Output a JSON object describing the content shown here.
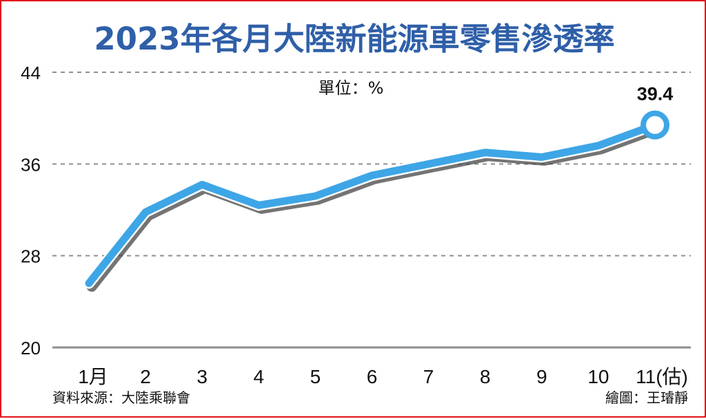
{
  "page": {
    "title": "2023年各月大陸新能源車零售滲透率",
    "unit_text": "單位：%",
    "source_text": "資料來源：大陸乘聯會",
    "credit_text": "繪圖：王璿靜"
  },
  "chart_data": {
    "type": "line",
    "title": "2023年各月大陸新能源車零售滲透率",
    "xlabel": "",
    "ylabel": "",
    "unit": "%",
    "categories": [
      "1月",
      "2",
      "3",
      "4",
      "5",
      "6",
      "7",
      "8",
      "9",
      "10",
      "11(估)"
    ],
    "series": [
      {
        "values": [
          25.6,
          31.8,
          34.2,
          32.4,
          33.2,
          35.0,
          36.0,
          37.0,
          36.6,
          37.6,
          39.4
        ],
        "color": "#3ea6e6"
      }
    ],
    "ylim": [
      20,
      44
    ],
    "yticks": [
      "20",
      "28",
      "36",
      "44"
    ],
    "grid": true,
    "data_labels": [
      {
        "category": "11(估)",
        "text": "39.4"
      }
    ]
  }
}
